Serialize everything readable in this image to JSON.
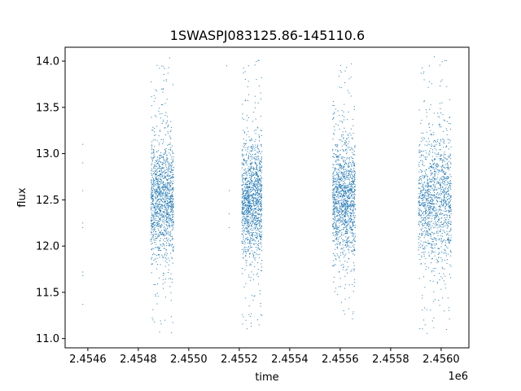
{
  "chart_data": {
    "type": "scatter",
    "title": "1SWASPJ083125.86-145110.6",
    "xlabel": "time",
    "ylabel": "flux",
    "x_offset_label": "1e6",
    "xlim": [
      2.45451,
      2.45611
    ],
    "ylim": [
      10.9,
      14.15
    ],
    "x_ticks": [
      2.4546,
      2.4548,
      2.455,
      2.4552,
      2.4554,
      2.4556,
      2.4558,
      2.456
    ],
    "x_tick_labels": [
      "2.4546",
      "2.4548",
      "2.4550",
      "2.4552",
      "2.4554",
      "2.4556",
      "2.4558",
      "2.4560"
    ],
    "y_ticks": [
      11.0,
      11.5,
      12.0,
      12.5,
      13.0,
      13.5,
      14.0
    ],
    "y_tick_labels": [
      "11.0",
      "11.5",
      "12.0",
      "12.5",
      "13.0",
      "13.5",
      "14.0"
    ],
    "grid": false,
    "marker_color": "#1f77b4",
    "series": [
      {
        "x_range": [
          2.45485,
          2.45494
        ],
        "y_core": [
          12.0,
          13.0
        ],
        "y_extent": [
          11.05,
          14.05
        ]
      },
      {
        "x_range": [
          2.45521,
          2.45529
        ],
        "y_core": [
          12.0,
          13.0
        ],
        "y_extent": [
          11.1,
          14.05
        ]
      },
      {
        "x_range": [
          2.45557,
          2.45566
        ],
        "y_core": [
          12.0,
          13.0
        ],
        "y_extent": [
          11.2,
          14.0
        ]
      },
      {
        "x_range": [
          2.45591,
          2.45604
        ],
        "y_core": [
          11.95,
          13.05
        ],
        "y_extent": [
          11.05,
          14.05
        ]
      }
    ],
    "outliers": [
      {
        "x": 2.45458,
        "y": 13.1
      },
      {
        "x": 2.45458,
        "y": 12.9
      },
      {
        "x": 2.45458,
        "y": 12.6
      },
      {
        "x": 2.45458,
        "y": 12.25
      },
      {
        "x": 2.45458,
        "y": 12.2
      },
      {
        "x": 2.45458,
        "y": 11.72
      },
      {
        "x": 2.45458,
        "y": 11.68
      },
      {
        "x": 2.45458,
        "y": 11.37
      },
      {
        "x": 2.45515,
        "y": 13.95
      },
      {
        "x": 2.45516,
        "y": 12.6
      },
      {
        "x": 2.45516,
        "y": 12.35
      },
      {
        "x": 2.45516,
        "y": 12.2
      }
    ]
  }
}
